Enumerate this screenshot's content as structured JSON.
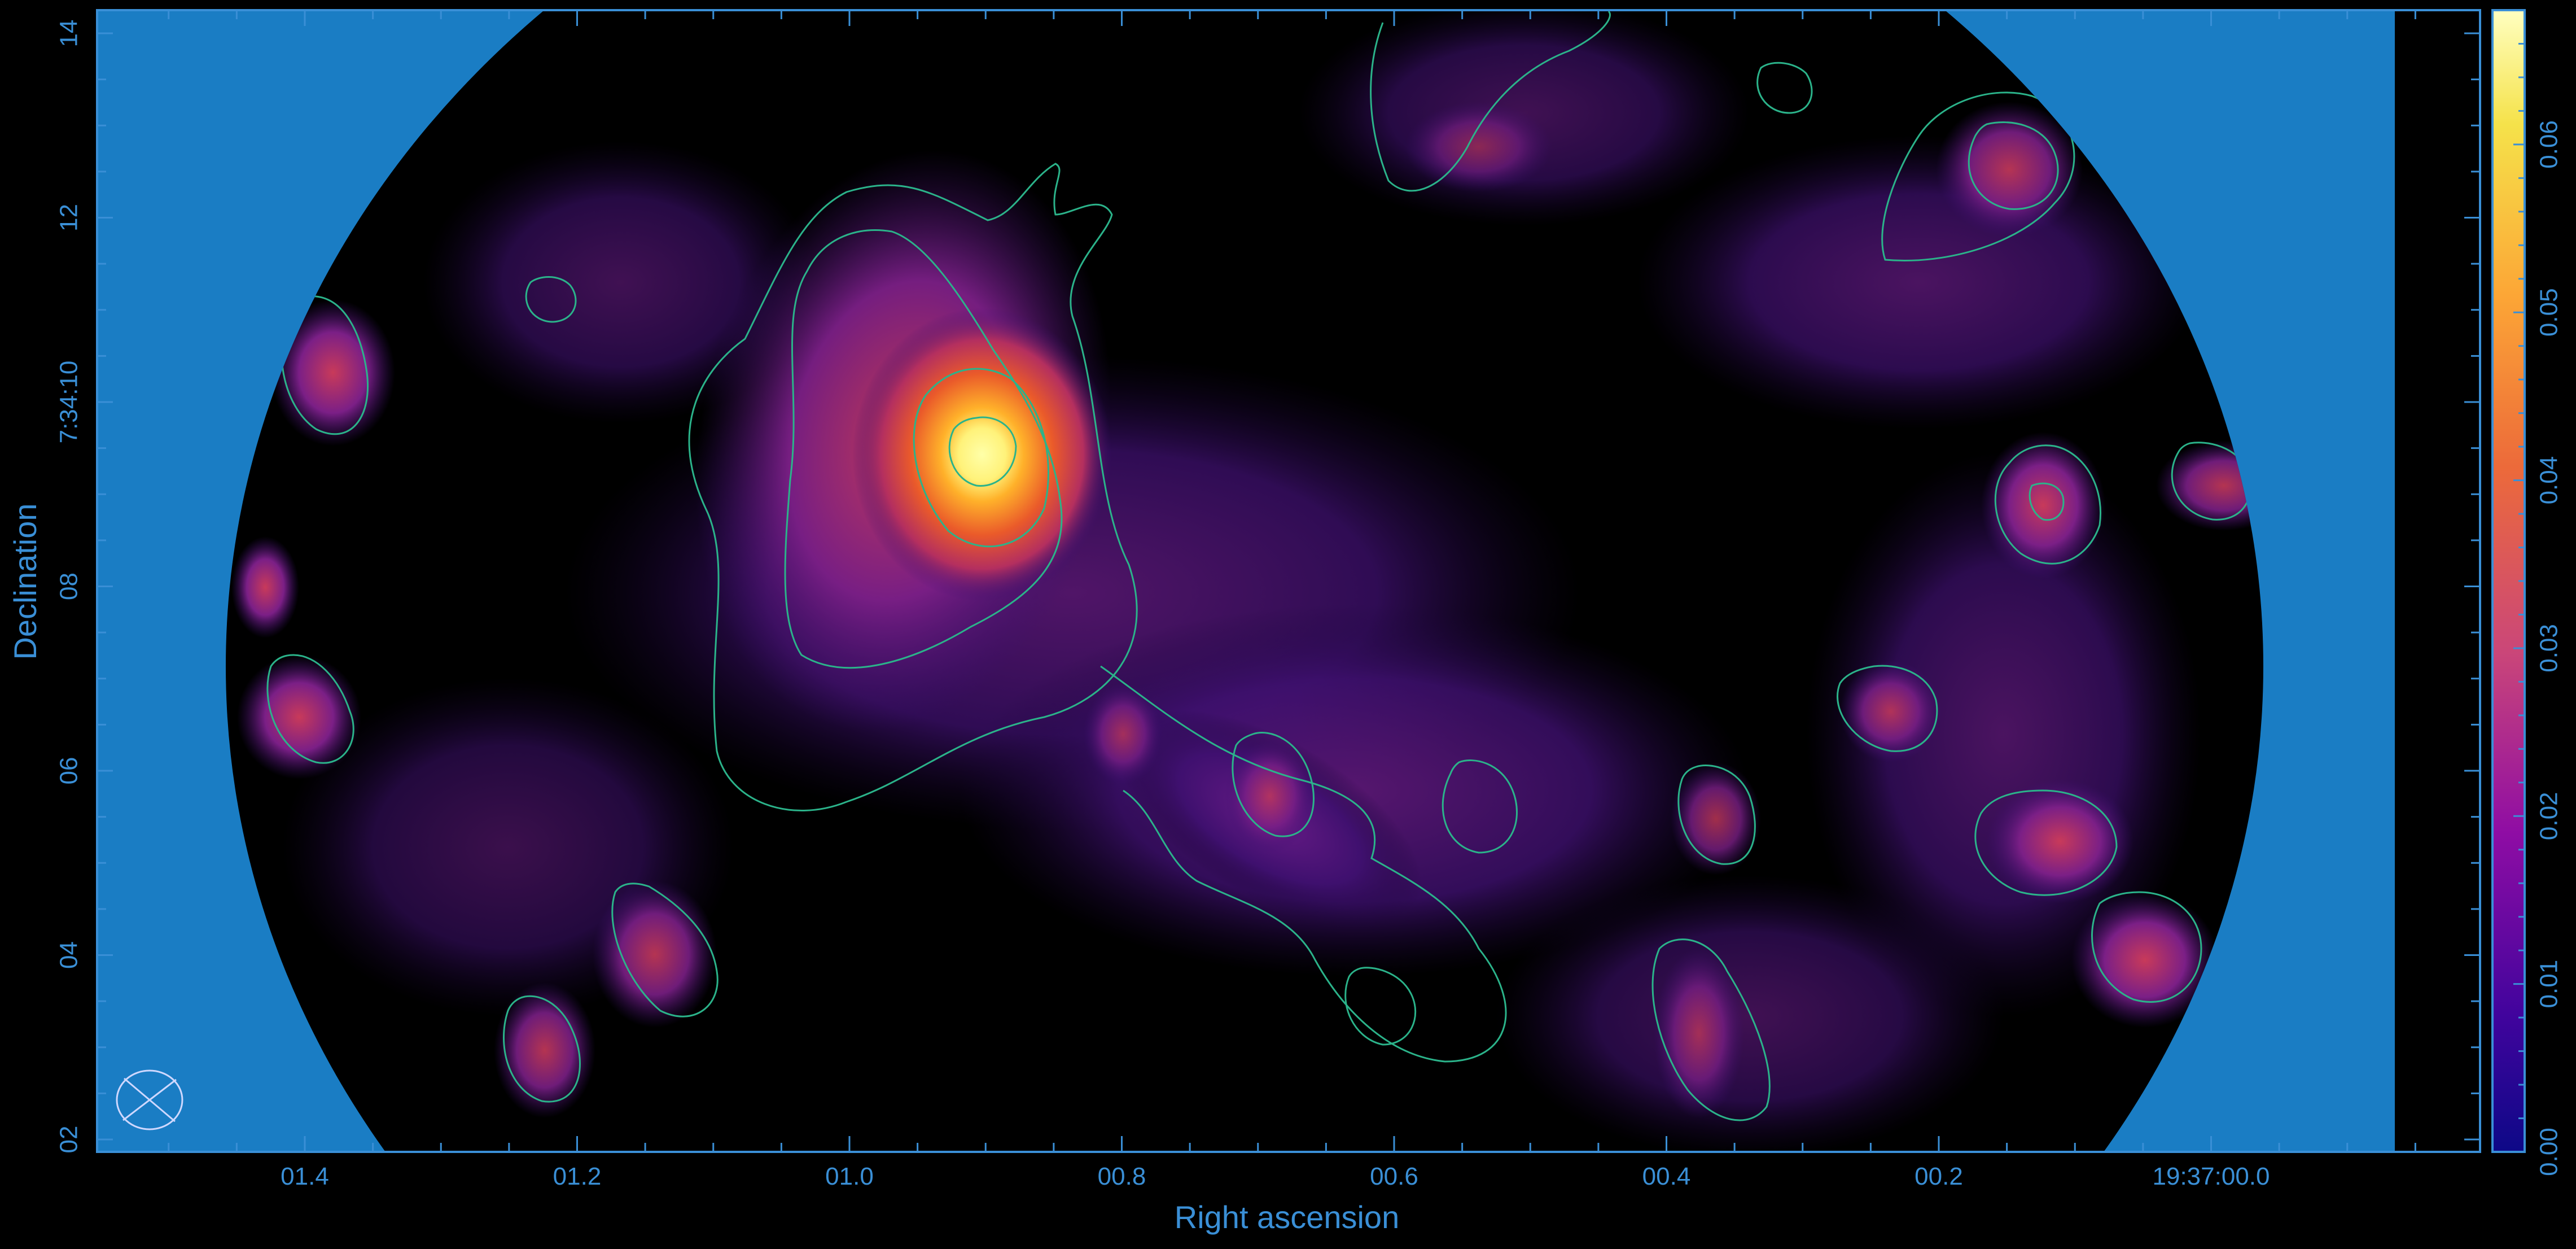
{
  "chart_data": {
    "type": "heatmap",
    "title": "",
    "xlabel": "Right ascension",
    "ylabel": "Declination",
    "x_tick_labels": [
      "01.4",
      "01.2",
      "01.0",
      "00.8",
      "00.6",
      "00.4",
      "00.2",
      "19:37:00.0"
    ],
    "y_tick_labels": [
      "14",
      "12",
      "7:34:10",
      "08",
      "06",
      "04",
      "02"
    ],
    "colorbar": {
      "range": [
        0.0,
        0.068
      ],
      "tick_values": [
        0.0,
        0.01,
        0.02,
        0.03,
        0.04,
        0.05,
        0.06
      ],
      "tick_labels": [
        "0.00",
        "0.01",
        "0.02",
        "0.03",
        "0.04",
        "0.05",
        "0.06"
      ],
      "colormap": "plasma-like (black-purple-red-orange-yellow)"
    },
    "grid": false,
    "contours": {
      "color": "#2bb38a",
      "description": "contour lines over emission"
    },
    "peak": {
      "ra": "19:37:00.91",
      "dec": "7:34:09.3",
      "value": 0.068
    },
    "beam": "ellipse in bottom-left corner"
  },
  "colors": {
    "background": "#000000",
    "frame": "#3a8fd6",
    "outside_field": "#1a7dc4",
    "contour": "#2bb38a",
    "beam": "#cfd8ff"
  }
}
